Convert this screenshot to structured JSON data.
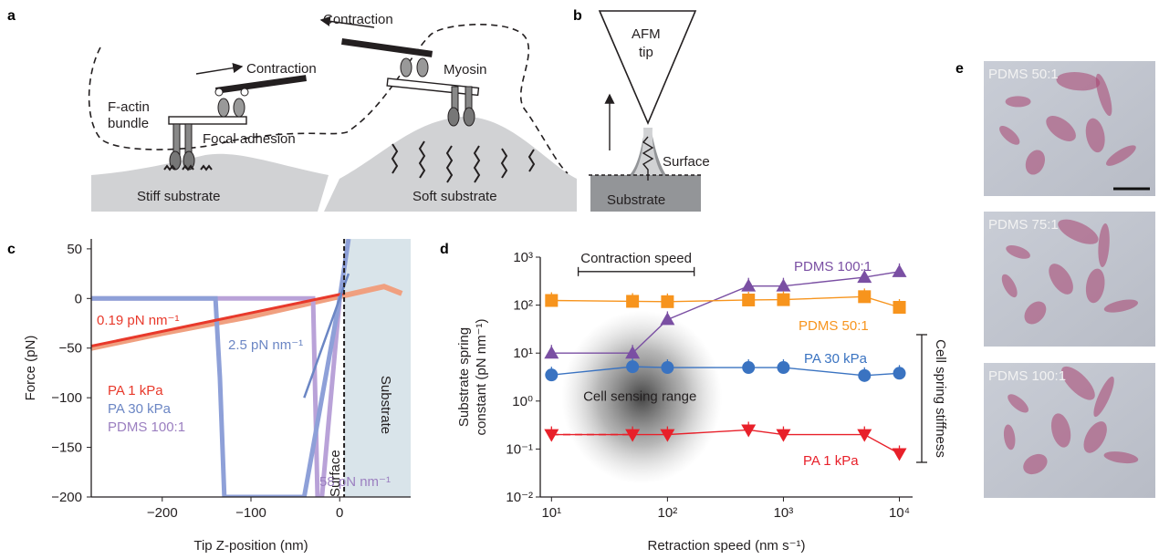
{
  "panels": {
    "a": {
      "label": "a",
      "contraction_left": "Contraction",
      "contraction_right": "Contraction",
      "factin_line1": "F-actin",
      "factin_line2": "bundle",
      "myosin": "Myosin",
      "focal_adhesion": "Focal adhesion",
      "stiff_substrate": "Stiff substrate",
      "soft_substrate": "Soft substrate"
    },
    "b": {
      "label": "b",
      "afm_line1": "AFM",
      "afm_line2": "tip",
      "surface": "Surface",
      "substrate": "Substrate"
    },
    "c": {
      "label": "c"
    },
    "d": {
      "label": "d"
    },
    "e": {
      "label": "e",
      "photos": [
        "PDMS 50:1",
        "PDMS 75:1",
        "PDMS 100:1"
      ]
    }
  },
  "chart_data": [
    {
      "id": "c",
      "type": "line",
      "xlabel": "Tip Z-position (nm)",
      "ylabel": "Force (pN)",
      "xlim": [
        -280,
        80
      ],
      "ylim": [
        -200,
        60
      ],
      "xticks": [
        -200,
        -100,
        0
      ],
      "xtick_labels": [
        "−200",
        "−100",
        "0"
      ],
      "yticks": [
        50,
        0,
        -50,
        -100,
        -150,
        -200
      ],
      "ytick_labels": [
        "50",
        "0",
        "−50",
        "−100",
        "−150",
        "−200"
      ],
      "legend": [
        "PA 1 kPa",
        "PA 30 kPa",
        "PDMS 100:1"
      ],
      "fit_labels": [
        "0.19 pN nm⁻¹",
        "2.5 pN nm⁻¹",
        "58 pN nm⁻¹"
      ],
      "surface_label": "Surface",
      "substrate_label": "Substrate",
      "colors": {
        "pa1": "#e8392b",
        "pa1_raw": "#f0a080",
        "pa30": "#6b86c4",
        "pa30_raw": "#8ea0d8",
        "pdms": "#9b7fc0",
        "pdms_raw": "#b9a2d8"
      },
      "series": [
        {
          "name": "PA 1 kPa",
          "x": [
            -280,
            -200,
            -100,
            0,
            5,
            30,
            50,
            70
          ],
          "y": [
            -50,
            -35,
            -18,
            2,
            3,
            8,
            12,
            5
          ]
        },
        {
          "name": "PA 30 kPa",
          "x": [
            -280,
            -140,
            -135,
            -130,
            -40,
            0,
            10
          ],
          "y": [
            0,
            0,
            -80,
            -200,
            -200,
            0,
            60
          ]
        },
        {
          "name": "PDMS 100:1",
          "x": [
            -280,
            -30,
            -25,
            -20,
            0
          ],
          "y": [
            0,
            0,
            -200,
            -200,
            0
          ]
        }
      ]
    },
    {
      "id": "d",
      "type": "scatter",
      "xlabel": "Retraction speed (nm s⁻¹)",
      "ylabel_line1": "Substrate spring",
      "ylabel_line2": "constant (pN nm⁻¹)",
      "xscale": "log",
      "yscale": "log",
      "xlim": [
        8,
        13000
      ],
      "ylim": [
        0.01,
        1000
      ],
      "xticks": [
        10,
        100,
        1000,
        10000
      ],
      "xtick_labels": [
        "10¹",
        "10²",
        "10³",
        "10⁴"
      ],
      "yticks": [
        0.01,
        0.1,
        1,
        10,
        100,
        1000
      ],
      "ytick_labels": [
        "10⁻²",
        "10⁻¹",
        "10⁰",
        "10¹",
        "10²",
        "10³"
      ],
      "contraction_speed_label": "Contraction speed",
      "cell_sensing_label": "Cell sensing range",
      "cell_spring_label": "Cell spring stiffness",
      "series": [
        {
          "name": "PDMS 100:1",
          "color": "#7a4fa3",
          "marker": "triangle-up",
          "x": [
            10,
            50,
            100,
            500,
            1000,
            5000,
            10000
          ],
          "y": [
            10,
            10,
            50,
            250,
            250,
            380,
            500
          ]
        },
        {
          "name": "PDMS 50:1",
          "color": "#f7941d",
          "marker": "square",
          "x": [
            10,
            50,
            100,
            500,
            1000,
            5000,
            10000
          ],
          "y": [
            125,
            120,
            118,
            128,
            130,
            150,
            90
          ]
        },
        {
          "name": "PA 30 kPa",
          "color": "#3a73c1",
          "marker": "circle",
          "x": [
            10,
            50,
            100,
            500,
            1000,
            5000,
            10000
          ],
          "y": [
            3.5,
            5.2,
            5.0,
            5.0,
            5.0,
            3.4,
            3.8
          ]
        },
        {
          "name": "PA 1 kPa",
          "color": "#e8202a",
          "marker": "triangle-down",
          "x": [
            10,
            50,
            100,
            500,
            1000,
            5000,
            10000
          ],
          "y": [
            0.2,
            0.2,
            0.2,
            0.25,
            0.2,
            0.2,
            0.08
          ]
        }
      ]
    }
  ]
}
